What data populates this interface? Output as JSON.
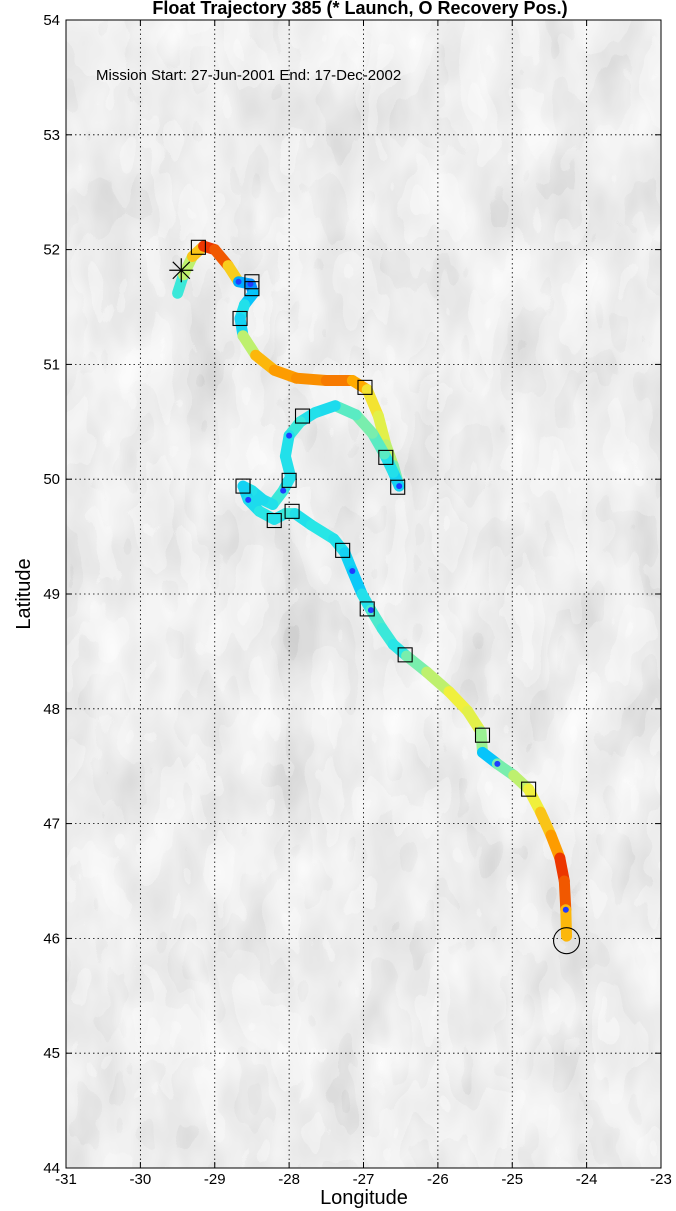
{
  "chart_data": {
    "type": "line",
    "title": "Float Trajectory 385 (* Launch, O Recovery Pos.)",
    "annotation": "Mission Start: 27-Jun-2001  End: 17-Dec-2002",
    "xlabel": "Longitude",
    "ylabel": "Latitude",
    "xlim": [
      -31,
      -23
    ],
    "ylim": [
      44,
      54
    ],
    "xticks": [
      "-31",
      "-30",
      "-29",
      "-28",
      "-27",
      "-26",
      "-25",
      "-24",
      "-23"
    ],
    "yticks": [
      "44",
      "45",
      "46",
      "47",
      "48",
      "49",
      "50",
      "51",
      "52",
      "53",
      "54"
    ],
    "grid": true,
    "background": "grayscale bathymetry",
    "colormap": "jet",
    "launch": {
      "x": -29.45,
      "y": 51.82,
      "marker": "*"
    },
    "recovery": {
      "x": -24.27,
      "y": 45.98,
      "marker": "o"
    },
    "trajectory": [
      {
        "x": -29.5,
        "y": 51.62
      },
      {
        "x": -29.42,
        "y": 51.78
      },
      {
        "x": -29.3,
        "y": 51.94
      },
      {
        "x": -29.15,
        "y": 52.03
      },
      {
        "x": -29.0,
        "y": 52.0
      },
      {
        "x": -28.82,
        "y": 51.86
      },
      {
        "x": -28.68,
        "y": 51.72
      },
      {
        "x": -28.52,
        "y": 51.7
      },
      {
        "x": -28.48,
        "y": 51.62
      },
      {
        "x": -28.6,
        "y": 51.52
      },
      {
        "x": -28.66,
        "y": 51.4
      },
      {
        "x": -28.62,
        "y": 51.25
      },
      {
        "x": -28.45,
        "y": 51.08
      },
      {
        "x": -28.2,
        "y": 50.95
      },
      {
        "x": -27.9,
        "y": 50.88
      },
      {
        "x": -27.5,
        "y": 50.86
      },
      {
        "x": -27.15,
        "y": 50.86
      },
      {
        "x": -26.95,
        "y": 50.78
      },
      {
        "x": -26.8,
        "y": 50.55
      },
      {
        "x": -26.7,
        "y": 50.3
      },
      {
        "x": -26.6,
        "y": 50.12
      },
      {
        "x": -26.52,
        "y": 49.94
      },
      {
        "x": -26.6,
        "y": 50.06
      },
      {
        "x": -26.72,
        "y": 50.22
      },
      {
        "x": -26.88,
        "y": 50.4
      },
      {
        "x": -27.1,
        "y": 50.56
      },
      {
        "x": -27.38,
        "y": 50.64
      },
      {
        "x": -27.65,
        "y": 50.58
      },
      {
        "x": -27.85,
        "y": 50.5
      },
      {
        "x": -28.0,
        "y": 50.38
      },
      {
        "x": -28.05,
        "y": 50.2
      },
      {
        "x": -27.98,
        "y": 50.02
      },
      {
        "x": -28.08,
        "y": 49.9
      },
      {
        "x": -28.22,
        "y": 49.78
      },
      {
        "x": -28.35,
        "y": 49.82
      },
      {
        "x": -28.5,
        "y": 49.9
      },
      {
        "x": -28.62,
        "y": 49.94
      },
      {
        "x": -28.55,
        "y": 49.82
      },
      {
        "x": -28.4,
        "y": 49.72
      },
      {
        "x": -28.2,
        "y": 49.65
      },
      {
        "x": -28.05,
        "y": 49.7
      },
      {
        "x": -27.92,
        "y": 49.7
      },
      {
        "x": -27.7,
        "y": 49.6
      },
      {
        "x": -27.4,
        "y": 49.48
      },
      {
        "x": -27.25,
        "y": 49.36
      },
      {
        "x": -27.15,
        "y": 49.2
      },
      {
        "x": -27.02,
        "y": 49.0
      },
      {
        "x": -26.9,
        "y": 48.86
      },
      {
        "x": -26.75,
        "y": 48.7
      },
      {
        "x": -26.6,
        "y": 48.56
      },
      {
        "x": -26.42,
        "y": 48.46
      },
      {
        "x": -26.15,
        "y": 48.32
      },
      {
        "x": -25.85,
        "y": 48.15
      },
      {
        "x": -25.6,
        "y": 47.98
      },
      {
        "x": -25.42,
        "y": 47.8
      },
      {
        "x": -25.4,
        "y": 47.62
      },
      {
        "x": -25.2,
        "y": 47.52
      },
      {
        "x": -24.98,
        "y": 47.42
      },
      {
        "x": -24.78,
        "y": 47.3
      },
      {
        "x": -24.62,
        "y": 47.1
      },
      {
        "x": -24.48,
        "y": 46.9
      },
      {
        "x": -24.36,
        "y": 46.7
      },
      {
        "x": -24.3,
        "y": 46.5
      },
      {
        "x": -24.28,
        "y": 46.25
      },
      {
        "x": -24.27,
        "y": 46.02
      }
    ],
    "profile_markers": [
      {
        "x": -29.22,
        "y": 52.02
      },
      {
        "x": -28.5,
        "y": 51.72
      },
      {
        "x": -28.5,
        "y": 51.66
      },
      {
        "x": -28.66,
        "y": 51.4
      },
      {
        "x": -26.98,
        "y": 50.8
      },
      {
        "x": -26.7,
        "y": 50.19
      },
      {
        "x": -26.54,
        "y": 49.93
      },
      {
        "x": -27.82,
        "y": 50.55
      },
      {
        "x": -28.0,
        "y": 49.99
      },
      {
        "x": -28.62,
        "y": 49.94
      },
      {
        "x": -27.96,
        "y": 49.72
      },
      {
        "x": -28.2,
        "y": 49.64
      },
      {
        "x": -27.28,
        "y": 49.38
      },
      {
        "x": -26.95,
        "y": 48.87
      },
      {
        "x": -26.44,
        "y": 48.47
      },
      {
        "x": -25.4,
        "y": 47.77
      },
      {
        "x": -24.78,
        "y": 47.3
      }
    ]
  }
}
